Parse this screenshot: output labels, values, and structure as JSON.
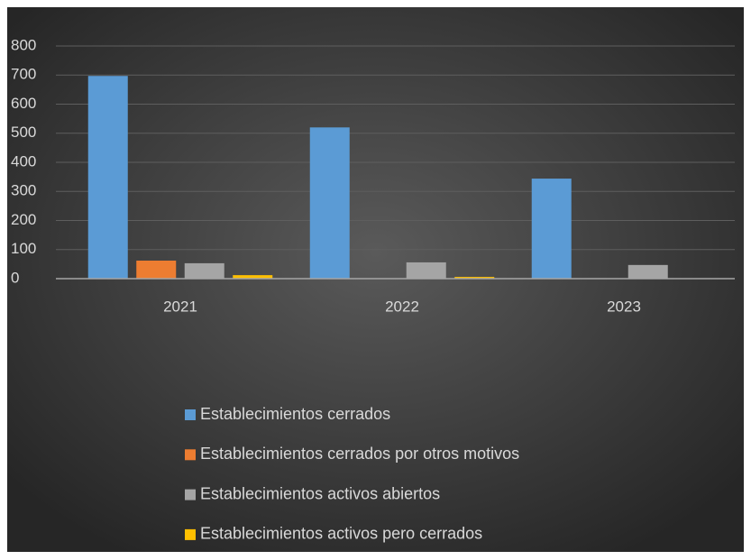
{
  "chart_data": {
    "type": "bar",
    "categories": [
      "2021",
      "2022",
      "2023"
    ],
    "series": [
      {
        "name": "Establecimientos cerrados",
        "color": "#5b9bd5",
        "values": [
          697,
          520,
          344
        ]
      },
      {
        "name": "Establecimientos cerrados por otros motivos",
        "color": "#ed7d31",
        "values": [
          62,
          0,
          0
        ]
      },
      {
        "name": "Establecimientos activos abiertos",
        "color": "#a5a5a5",
        "values": [
          53,
          56,
          47
        ]
      },
      {
        "name": "Establecimientos activos pero cerrados",
        "color": "#ffc000",
        "values": [
          12,
          6,
          0
        ]
      }
    ],
    "ylim": [
      0,
      800
    ],
    "yticks": [
      0,
      100,
      200,
      300,
      400,
      500,
      600,
      700,
      800
    ],
    "grid": true,
    "legend": "bottom"
  }
}
